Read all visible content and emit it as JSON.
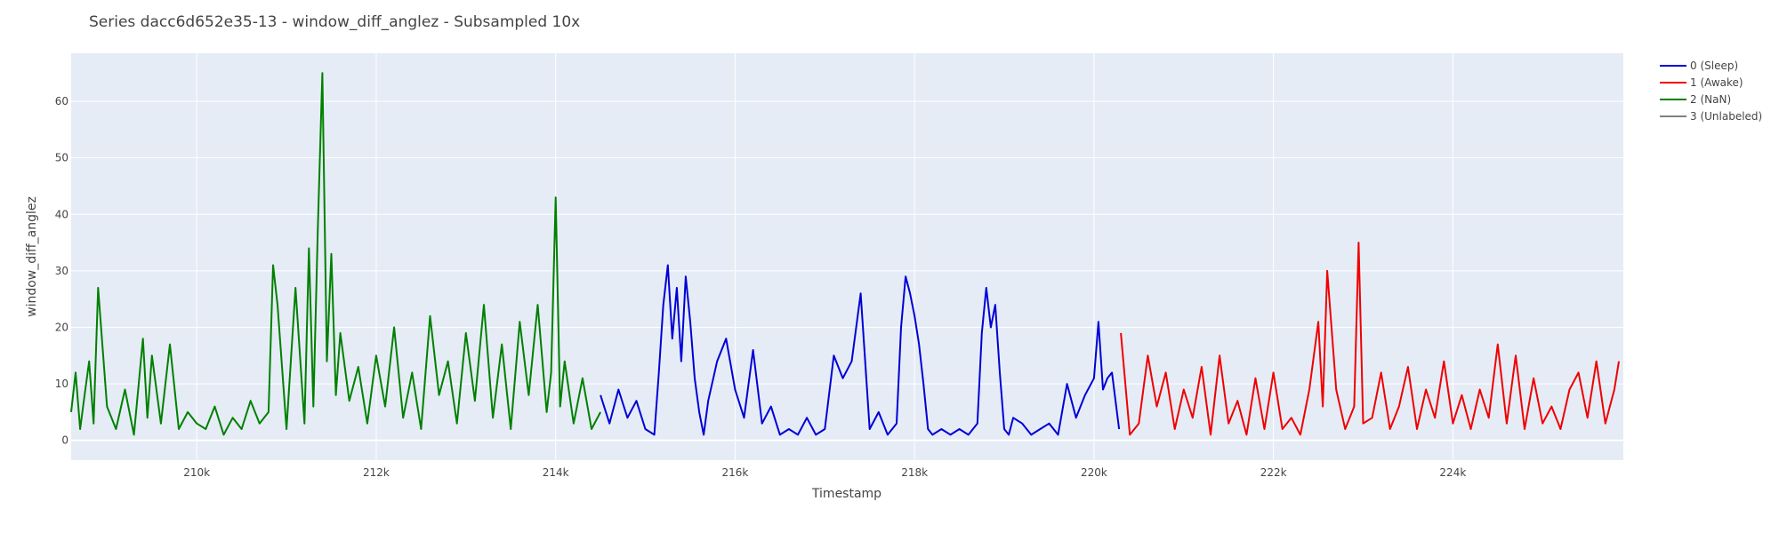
{
  "chart_data": {
    "type": "line",
    "title": "Series dacc6d652e35-13 - window_diff_anglez - Subsampled 10x",
    "xlabel": "Timestamp",
    "ylabel": "window_diff_anglez",
    "xlim": [
      208600,
      225900
    ],
    "ylim": [
      -3.5,
      68.5
    ],
    "x_ticks": [
      210000,
      212000,
      214000,
      216000,
      218000,
      220000,
      222000,
      224000
    ],
    "x_tick_labels": [
      "210k",
      "212k",
      "214k",
      "216k",
      "218k",
      "220k",
      "222k",
      "224k"
    ],
    "y_ticks": [
      0,
      10,
      20,
      30,
      40,
      50,
      60
    ],
    "y_tick_labels": [
      "0",
      "10",
      "20",
      "30",
      "40",
      "50",
      "60"
    ],
    "grid": true,
    "legend_position": "top-right",
    "colors": {
      "plot_bg": "#e5ecf6",
      "grid": "#ffffff"
    },
    "series": [
      {
        "name": "0 (Sleep)",
        "color": "#0000d6",
        "x": [
          214500,
          214600,
          214700,
          214800,
          214900,
          215000,
          215100,
          215150,
          215200,
          215250,
          215300,
          215350,
          215400,
          215450,
          215500,
          215550,
          215600,
          215650,
          215700,
          215800,
          215900,
          216000,
          216100,
          216200,
          216300,
          216400,
          216500,
          216600,
          216700,
          216800,
          216900,
          217000,
          217100,
          217200,
          217300,
          217400,
          217500,
          217600,
          217700,
          217800,
          217850,
          217900,
          217950,
          218000,
          218050,
          218100,
          218150,
          218200,
          218300,
          218400,
          218500,
          218600,
          218700,
          218750,
          218800,
          218850,
          218900,
          218950,
          219000,
          219050,
          219100,
          219200,
          219300,
          219400,
          219500,
          219600,
          219700,
          219800,
          219900,
          220000,
          220050,
          220100,
          220150,
          220200,
          220280
        ],
        "values": [
          8,
          3,
          9,
          4,
          7,
          2,
          1,
          12,
          24,
          31,
          18,
          27,
          14,
          29,
          21,
          11,
          5,
          1,
          7,
          14,
          18,
          9,
          4,
          16,
          3,
          6,
          1,
          2,
          1,
          4,
          1,
          2,
          15,
          11,
          14,
          26,
          2,
          5,
          1,
          3,
          20,
          29,
          26,
          22,
          17,
          10,
          2,
          1,
          2,
          1,
          2,
          1,
          3,
          19,
          27,
          20,
          24,
          12,
          2,
          1,
          4,
          3,
          1,
          2,
          3,
          1,
          10,
          4,
          8,
          11,
          21,
          9,
          11,
          12,
          2
        ]
      },
      {
        "name": "1 (Awake)",
        "color": "#f00000",
        "x": [
          220300,
          220400,
          220500,
          220600,
          220700,
          220800,
          220900,
          221000,
          221100,
          221200,
          221300,
          221400,
          221500,
          221600,
          221700,
          221800,
          221900,
          222000,
          222100,
          222200,
          222300,
          222400,
          222500,
          222550,
          222600,
          222700,
          222800,
          222900,
          222950,
          223000,
          223100,
          223200,
          223300,
          223400,
          223500,
          223600,
          223700,
          223800,
          223900,
          224000,
          224100,
          224200,
          224300,
          224400,
          224500,
          224600,
          224700,
          224800,
          224900,
          225000,
          225100,
          225200,
          225300,
          225400,
          225500,
          225600,
          225700,
          225800,
          225850
        ],
        "values": [
          19,
          1,
          3,
          15,
          6,
          12,
          2,
          9,
          4,
          13,
          1,
          15,
          3,
          7,
          1,
          11,
          2,
          12,
          2,
          4,
          1,
          9,
          21,
          6,
          30,
          9,
          2,
          6,
          35,
          3,
          4,
          12,
          2,
          6,
          13,
          2,
          9,
          4,
          14,
          3,
          8,
          2,
          9,
          4,
          17,
          3,
          15,
          2,
          11,
          3,
          6,
          2,
          9,
          12,
          4,
          14,
          3,
          9,
          14
        ]
      },
      {
        "name": "2 (NaN)",
        "color": "#008000",
        "x": [
          208600,
          208650,
          208700,
          208750,
          208800,
          208850,
          208900,
          209000,
          209100,
          209200,
          209300,
          209400,
          209450,
          209500,
          209600,
          209700,
          209800,
          209900,
          210000,
          210100,
          210200,
          210300,
          210400,
          210500,
          210600,
          210700,
          210800,
          210850,
          210900,
          211000,
          211100,
          211200,
          211250,
          211300,
          211350,
          211400,
          211450,
          211500,
          211550,
          211600,
          211700,
          211800,
          211900,
          212000,
          212100,
          212200,
          212300,
          212400,
          212500,
          212600,
          212700,
          212800,
          212900,
          213000,
          213100,
          213200,
          213300,
          213400,
          213500,
          213600,
          213700,
          213800,
          213900,
          213950,
          214000,
          214050,
          214100,
          214200,
          214300,
          214400,
          214500
        ],
        "values": [
          5,
          12,
          2,
          8,
          14,
          3,
          27,
          6,
          2,
          9,
          1,
          18,
          4,
          15,
          3,
          17,
          2,
          5,
          3,
          2,
          6,
          1,
          4,
          2,
          7,
          3,
          5,
          31,
          24,
          2,
          27,
          3,
          34,
          6,
          38,
          65,
          14,
          33,
          8,
          19,
          7,
          13,
          3,
          15,
          6,
          20,
          4,
          12,
          2,
          22,
          8,
          14,
          3,
          19,
          7,
          24,
          4,
          17,
          2,
          21,
          8,
          24,
          5,
          12,
          43,
          6,
          14,
          3,
          11,
          2,
          5
        ]
      },
      {
        "name": "3 (Unlabeled)",
        "color": "#808080",
        "x": [],
        "values": []
      }
    ]
  }
}
